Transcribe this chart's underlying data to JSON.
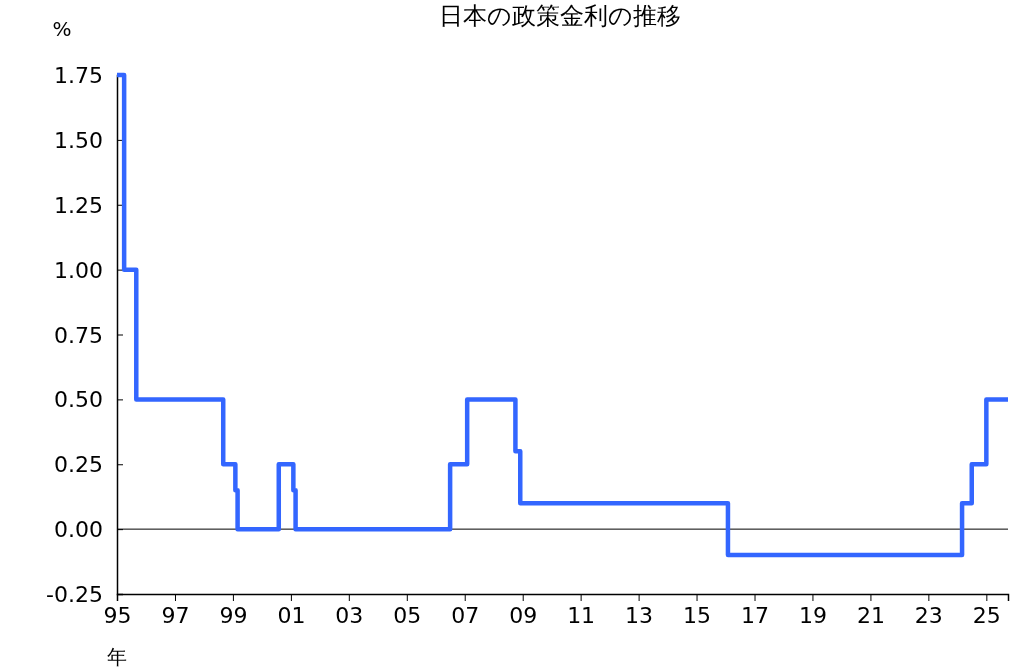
{
  "chart_data": {
    "type": "step",
    "title": "日本の政策金利の推移",
    "xlabel": "年",
    "ylabel": "%",
    "x": [
      "1995-01",
      "1995-04",
      "1995-09",
      "1998-09",
      "1999-02",
      "1999-03",
      "2000-08",
      "2001-02",
      "2001-03",
      "2006-07",
      "2007-02",
      "2008-10",
      "2008-12",
      "2016-02",
      "2024-03",
      "2024-07",
      "2025-01",
      "2025-10"
    ],
    "series": [
      {
        "color": "#3366ff",
        "values": [
          1.75,
          1.0,
          0.5,
          0.25,
          0.15,
          0,
          0.25,
          0.15,
          0,
          0.25,
          0.5,
          0.3,
          0.1,
          -0.1,
          0.1,
          0.25,
          0.5,
          0.5
        ]
      }
    ],
    "xlim": [
      "1995-01",
      "2025-10"
    ],
    "xticks": [
      {
        "value": "1995",
        "label": "95"
      },
      {
        "value": "1997",
        "label": "97"
      },
      {
        "value": "1999",
        "label": "99"
      },
      {
        "value": "2001",
        "label": "01"
      },
      {
        "value": "2003",
        "label": "03"
      },
      {
        "value": "2005",
        "label": "05"
      },
      {
        "value": "2007",
        "label": "07"
      },
      {
        "value": "2009",
        "label": "09"
      },
      {
        "value": "2011",
        "label": "11"
      },
      {
        "value": "2013",
        "label": "13"
      },
      {
        "value": "2015",
        "label": "15"
      },
      {
        "value": "2017",
        "label": "17"
      },
      {
        "value": "2019",
        "label": "19"
      },
      {
        "value": "2021",
        "label": "21"
      },
      {
        "value": "2023",
        "label": "23"
      },
      {
        "value": "2025",
        "label": "25"
      }
    ],
    "ylim": [
      -0.25,
      1.75
    ],
    "yticks": [
      {
        "value": -0.25,
        "label": "-0.25"
      },
      {
        "value": 0,
        "label": "0.00"
      },
      {
        "value": 0.25,
        "label": "0.25"
      },
      {
        "value": 0.5,
        "label": "0.50"
      },
      {
        "value": 0.75,
        "label": "0.75"
      },
      {
        "value": 1,
        "label": "1.00"
      },
      {
        "value": 1.25,
        "label": "1.25"
      },
      {
        "value": 1.5,
        "label": "1.50"
      },
      {
        "value": 1.75,
        "label": "1.75"
      }
    ],
    "ref_lines": [
      {
        "axis": "y",
        "value": 0,
        "color": "#000000"
      }
    ],
    "grid": false,
    "marker": "none",
    "line_style": "solid"
  }
}
